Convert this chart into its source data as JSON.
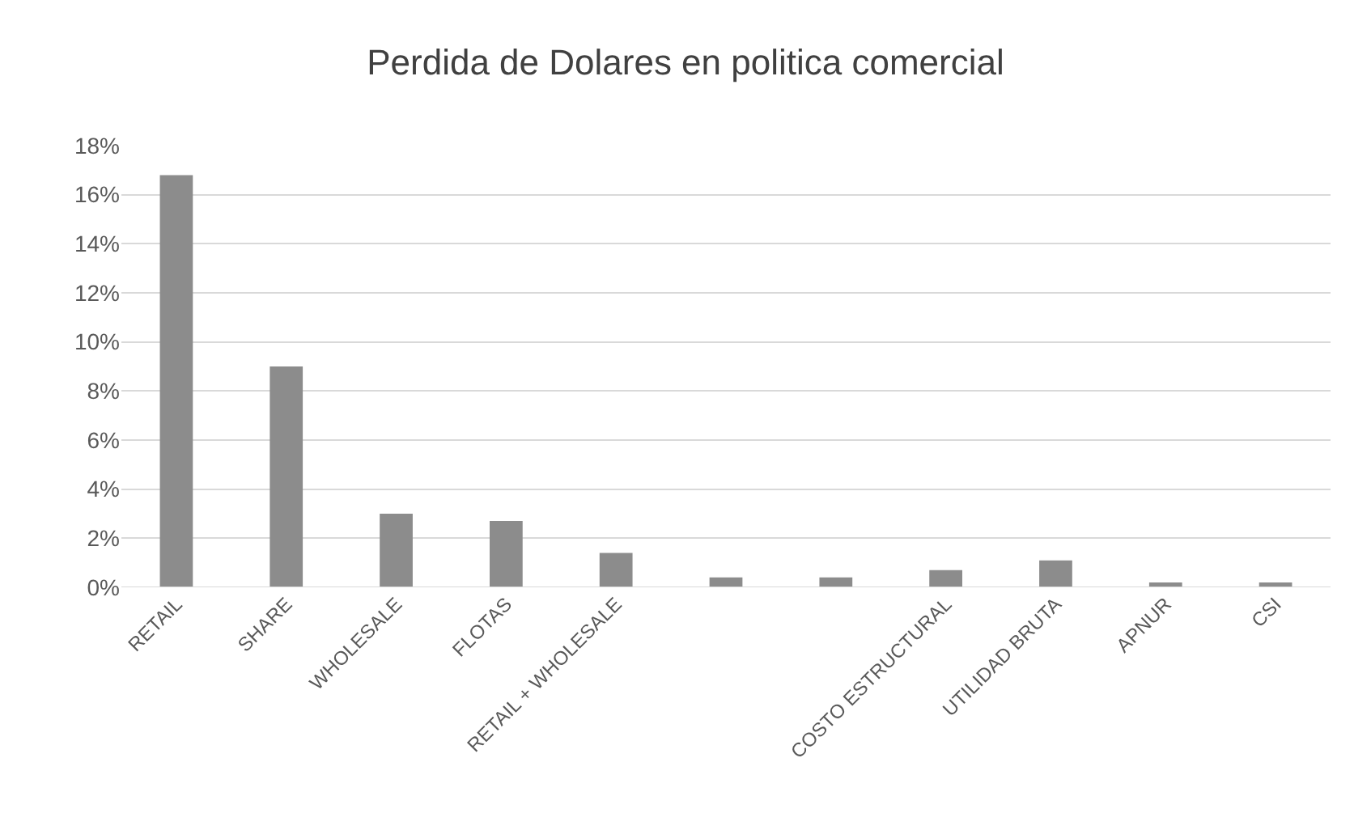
{
  "chart_data": {
    "type": "bar",
    "title": "Perdida de Dolares en politica comercial",
    "categories": [
      "RETAIL",
      "SHARE",
      "WHOLESALE",
      "FLOTAS",
      "RETAIL + WHOLESALE",
      null,
      null,
      "COSTO ESTRUCTURAL",
      "UTILIDAD BRUTA",
      "APNUR",
      "CSI"
    ],
    "values": [
      16.8,
      9.0,
      3.0,
      2.7,
      1.4,
      0.4,
      0.4,
      0.7,
      1.1,
      0.2,
      0.2
    ],
    "color": "#8c8c8c",
    "ylim": [
      0,
      18
    ],
    "yticks": [
      {
        "value": 0,
        "label": "0%"
      },
      {
        "value": 2,
        "label": "2%"
      },
      {
        "value": 4,
        "label": "4%"
      },
      {
        "value": 6,
        "label": "6%"
      },
      {
        "value": 8,
        "label": "8%"
      },
      {
        "value": 10,
        "label": "10%"
      },
      {
        "value": 12,
        "label": "12%"
      },
      {
        "value": 14,
        "label": "14%"
      },
      {
        "value": 16,
        "label": "16%"
      },
      {
        "value": 18,
        "label": "18%"
      }
    ],
    "grid": "y"
  }
}
